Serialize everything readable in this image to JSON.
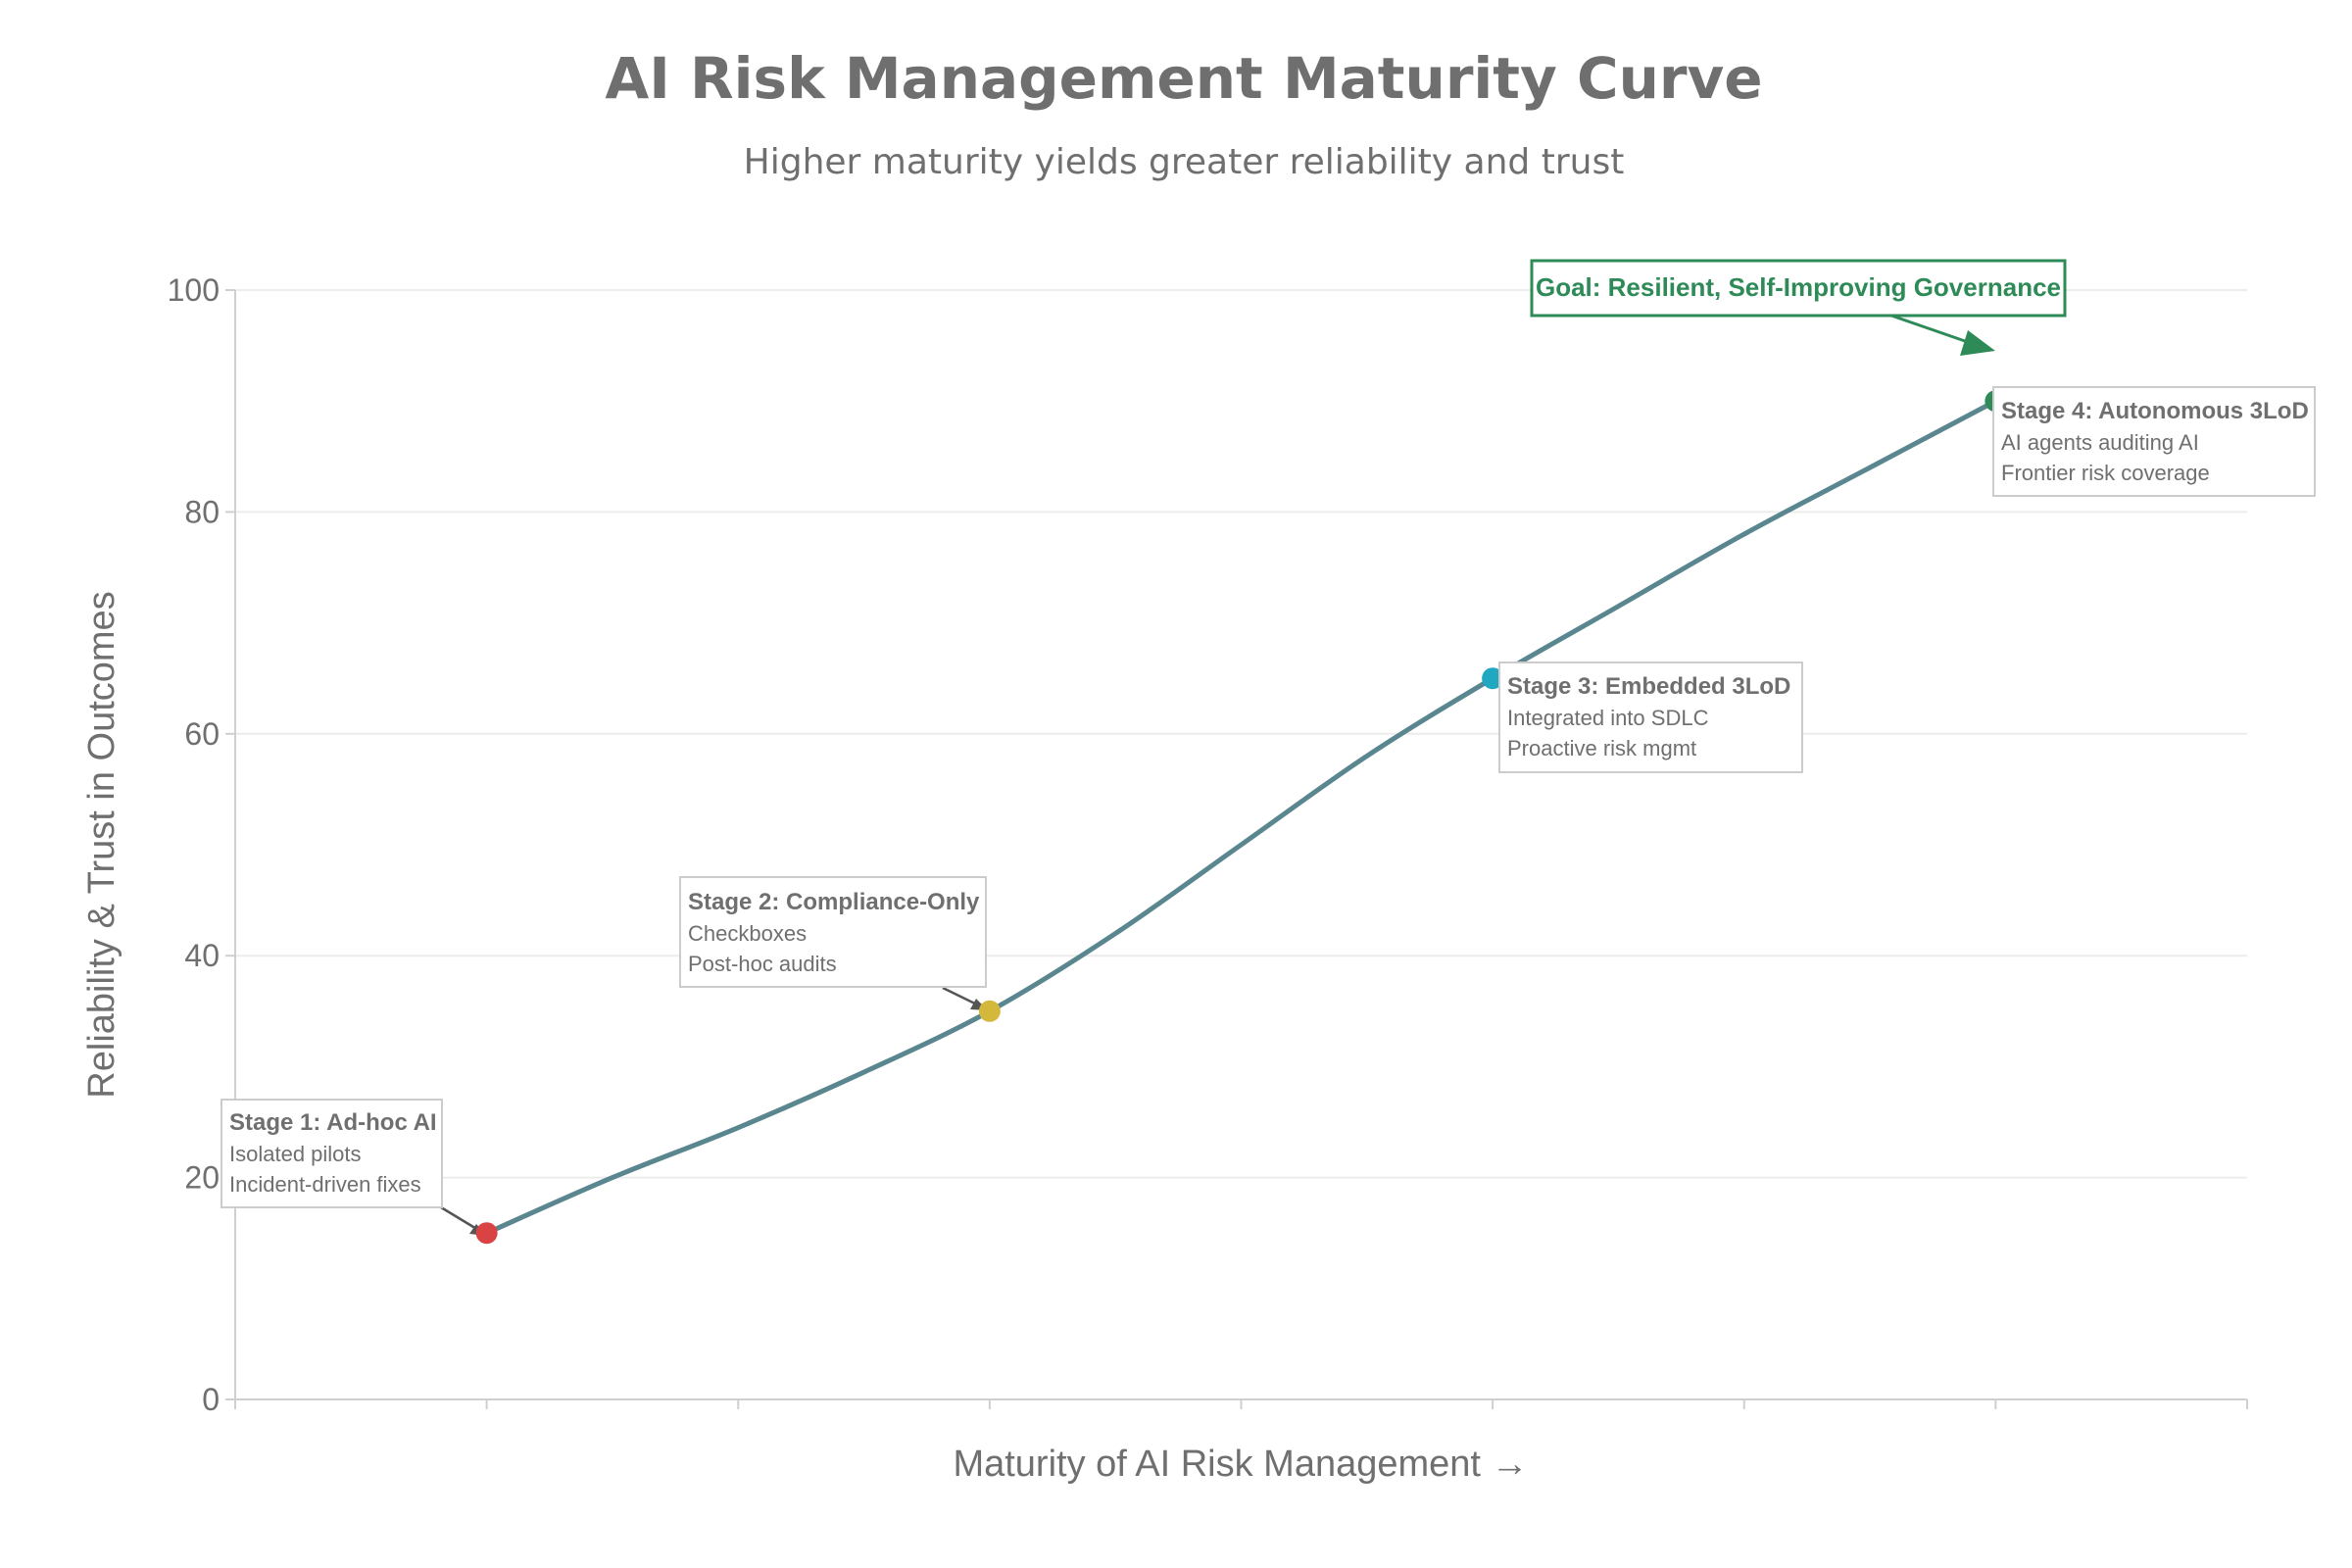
{
  "chart_data": {
    "type": "line",
    "title": "AI Risk Management Maturity Curve",
    "subtitle": "Higher maturity yields greater reliability and trust",
    "xlabel": "Maturity of AI Risk Management →",
    "ylabel": "Reliability & Trust in Outcomes",
    "xlim": [
      0,
      8
    ],
    "ylim": [
      0,
      100
    ],
    "yticks": [
      0,
      20,
      40,
      60,
      80,
      100
    ],
    "xticks": [
      0,
      1,
      2,
      3,
      4,
      5,
      6,
      7,
      8
    ],
    "grid": "horizontal",
    "legend": "none",
    "series": [
      {
        "x": [
          1,
          1.5,
          2,
          2.5,
          3,
          3.5,
          4,
          4.5,
          5,
          5.5,
          6,
          6.5,
          7
        ],
        "values": [
          15,
          20,
          24.5,
          29.5,
          35,
          42,
          50,
          58,
          65,
          71.5,
          78,
          84,
          90
        ],
        "color": "#5a8690"
      }
    ],
    "points": [
      {
        "x": 1,
        "y": 15,
        "color": "#d94343"
      },
      {
        "x": 3,
        "y": 35,
        "color": "#d4b83c"
      },
      {
        "x": 5,
        "y": 65,
        "color": "#1fa8c0"
      },
      {
        "x": 7,
        "y": 90,
        "color": "#2e8b57"
      }
    ],
    "annotations": [
      {
        "title": "Stage 1: Ad-hoc AI",
        "lines": [
          "Isolated pilots",
          "Incident-driven fixes"
        ]
      },
      {
        "title": "Stage 2: Compliance-Only",
        "lines": [
          "Checkboxes",
          "Post-hoc audits"
        ]
      },
      {
        "title": "Stage 3: Embedded 3LoD",
        "lines": [
          "Integrated into SDLC",
          "Proactive risk mgmt"
        ]
      },
      {
        "title": "Stage 4: Autonomous 3LoD",
        "lines": [
          "AI agents auditing AI",
          "Frontier risk coverage"
        ]
      }
    ],
    "goal": {
      "text": "Goal: Resilient, Self-Improving Governance",
      "color": "#2e8b57"
    }
  }
}
